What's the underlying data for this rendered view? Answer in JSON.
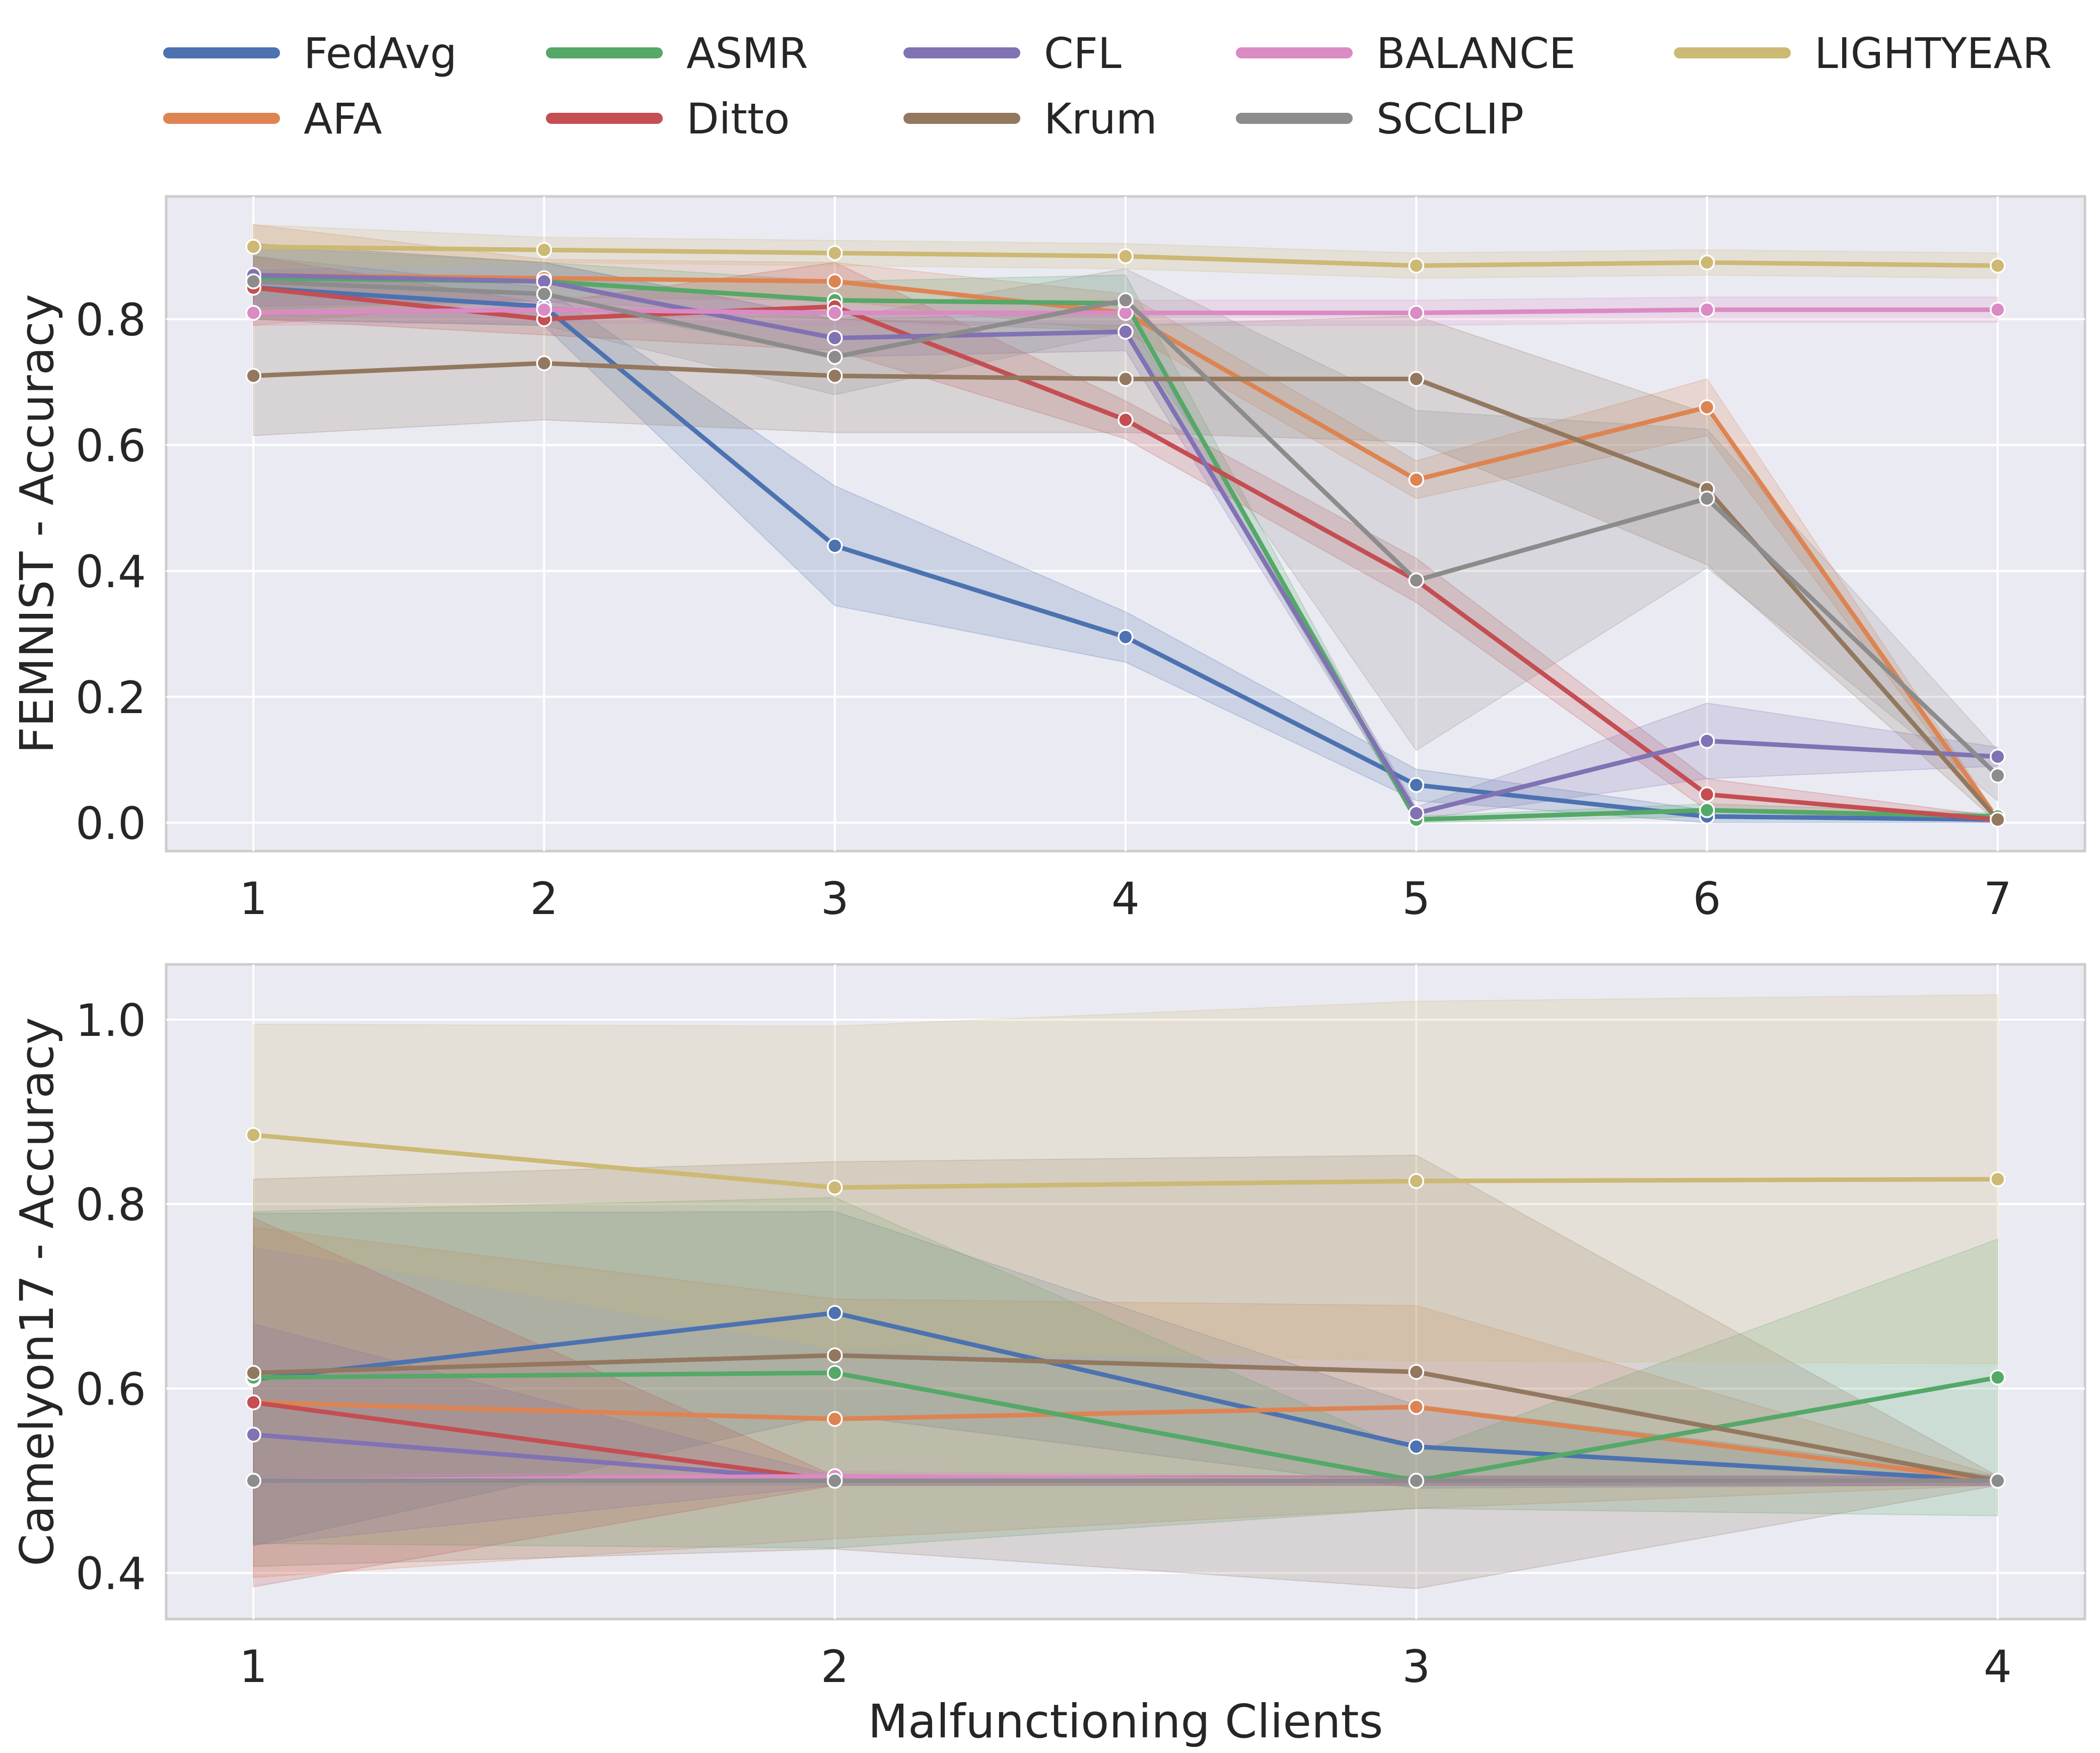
{
  "legend": {
    "placement": "top",
    "entries": [
      {
        "name": "FedAvg",
        "color": "#4c72b0"
      },
      {
        "name": "AFA",
        "color": "#dd8452"
      },
      {
        "name": "ASMR",
        "color": "#55a868"
      },
      {
        "name": "Ditto",
        "color": "#c44e52"
      },
      {
        "name": "CFL",
        "color": "#8172b3"
      },
      {
        "name": "Krum",
        "color": "#937860"
      },
      {
        "name": "BALANCE",
        "color": "#da8bc3"
      },
      {
        "name": "SCCLIP",
        "color": "#8c8c8c"
      },
      {
        "name": "LIGHTYEAR",
        "color": "#ccb974"
      }
    ]
  },
  "chart_data": [
    {
      "type": "line",
      "title": "",
      "xlabel": "",
      "ylabel": "FEMNIST - Accuracy",
      "x": [
        1,
        2,
        3,
        4,
        5,
        6,
        7
      ],
      "xlim": [
        0.7,
        7.3
      ],
      "ylim": [
        -0.045,
        0.995
      ],
      "yticks": [
        "0.0",
        "0.2",
        "0.4",
        "0.6",
        "0.8"
      ],
      "grid": true,
      "background": "#eaeaf2",
      "series": [
        {
          "name": "FedAvg",
          "color": "#4c72b0",
          "values": [
            0.85,
            0.82,
            0.44,
            0.295,
            0.06,
            0.01,
            0.005
          ],
          "band": [
            0.05,
            0.03,
            0.095,
            0.04,
            0.025,
            0.01,
            0.005
          ]
        },
        {
          "name": "AFA",
          "color": "#dd8452",
          "values": [
            0.87,
            0.865,
            0.86,
            0.81,
            0.545,
            0.66,
            0.005
          ],
          "band": [
            0.08,
            0.03,
            0.03,
            0.03,
            0.03,
            0.045,
            0.005
          ]
        },
        {
          "name": "ASMR",
          "color": "#55a868",
          "values": [
            0.865,
            0.86,
            0.83,
            0.825,
            0.005,
            0.02,
            0.01
          ],
          "band": [
            0.05,
            0.03,
            0.03,
            0.045,
            0.005,
            0.01,
            0.005
          ]
        },
        {
          "name": "Ditto",
          "color": "#c44e52",
          "values": [
            0.85,
            0.8,
            0.82,
            0.64,
            0.385,
            0.045,
            0.005
          ],
          "band": [
            0.05,
            0.025,
            0.07,
            0.03,
            0.035,
            0.025,
            0.005
          ]
        },
        {
          "name": "CFL",
          "color": "#8172b3",
          "values": [
            0.87,
            0.86,
            0.77,
            0.78,
            0.015,
            0.13,
            0.105
          ],
          "band": [
            0.05,
            0.03,
            0.03,
            0.03,
            0.01,
            0.06,
            0.015
          ]
        },
        {
          "name": "Krum",
          "color": "#937860",
          "values": [
            0.71,
            0.73,
            0.71,
            0.705,
            0.705,
            0.53,
            0.005
          ],
          "band": [
            0.095,
            0.09,
            0.09,
            0.085,
            0.1,
            0.12,
            0.005
          ]
        },
        {
          "name": "BALANCE",
          "color": "#da8bc3",
          "values": [
            0.81,
            0.815,
            0.81,
            0.81,
            0.81,
            0.815,
            0.815
          ],
          "band": [
            0.02,
            0.02,
            0.02,
            0.02,
            0.02,
            0.02,
            0.02
          ]
        },
        {
          "name": "SCCLIP",
          "color": "#8c8c8c",
          "values": [
            0.86,
            0.84,
            0.74,
            0.83,
            0.385,
            0.515,
            0.075
          ],
          "band": [
            0.06,
            0.05,
            0.06,
            0.05,
            0.27,
            0.11,
            0.04
          ]
        },
        {
          "name": "LIGHTYEAR",
          "color": "#ccb974",
          "values": [
            0.915,
            0.91,
            0.905,
            0.9,
            0.885,
            0.89,
            0.885
          ],
          "band": [
            0.035,
            0.02,
            0.02,
            0.02,
            0.02,
            0.02,
            0.02
          ]
        }
      ]
    },
    {
      "type": "line",
      "title": "",
      "xlabel": "Malfunctioning Clients",
      "ylabel": "Camelyon17 - Accuracy",
      "x": [
        1,
        2,
        3,
        4
      ],
      "xlim": [
        0.85,
        4.15
      ],
      "ylim": [
        0.35,
        1.06
      ],
      "yticks": [
        "0.4",
        "0.6",
        "0.8",
        "1.0"
      ],
      "grid": true,
      "background": "#eaeaf2",
      "series": [
        {
          "name": "FedAvg",
          "color": "#4c72b0",
          "values": [
            0.61,
            0.682,
            0.537,
            0.5
          ],
          "band": [
            0.18,
            0.11,
            0.045,
            0.005
          ]
        },
        {
          "name": "AFA",
          "color": "#dd8452",
          "values": [
            0.585,
            0.567,
            0.58,
            0.5
          ],
          "band": [
            0.19,
            0.13,
            0.11,
            0.005
          ]
        },
        {
          "name": "ASMR",
          "color": "#55a868",
          "values": [
            0.612,
            0.617,
            0.5,
            0.612
          ],
          "band": [
            0.18,
            0.19,
            0.03,
            0.15
          ]
        },
        {
          "name": "Ditto",
          "color": "#c44e52",
          "values": [
            0.585,
            0.5,
            0.5,
            0.5
          ],
          "band": [
            0.2,
            0.005,
            0.005,
            0.005
          ]
        },
        {
          "name": "CFL",
          "color": "#8172b3",
          "values": [
            0.55,
            0.5,
            0.5,
            0.5
          ],
          "band": [
            0.12,
            0.005,
            0.005,
            0.005
          ]
        },
        {
          "name": "Krum",
          "color": "#937860",
          "values": [
            0.617,
            0.636,
            0.618,
            0.5
          ],
          "band": [
            0.21,
            0.21,
            0.235,
            0.005
          ]
        },
        {
          "name": "BALANCE",
          "color": "#da8bc3",
          "values": [
            0.5,
            0.505,
            0.5,
            0.5
          ],
          "band": [
            0.005,
            0.005,
            0.005,
            0.005
          ]
        },
        {
          "name": "SCCLIP",
          "color": "#8c8c8c",
          "values": [
            0.5,
            0.5,
            0.5,
            0.5
          ],
          "band": [
            0.005,
            0.005,
            0.005,
            0.005
          ]
        },
        {
          "name": "LIGHTYEAR",
          "color": "#ccb974",
          "values": [
            0.875,
            0.818,
            0.825,
            0.827
          ],
          "band": [
            0.12,
            0.175,
            0.195,
            0.2
          ]
        }
      ]
    }
  ]
}
